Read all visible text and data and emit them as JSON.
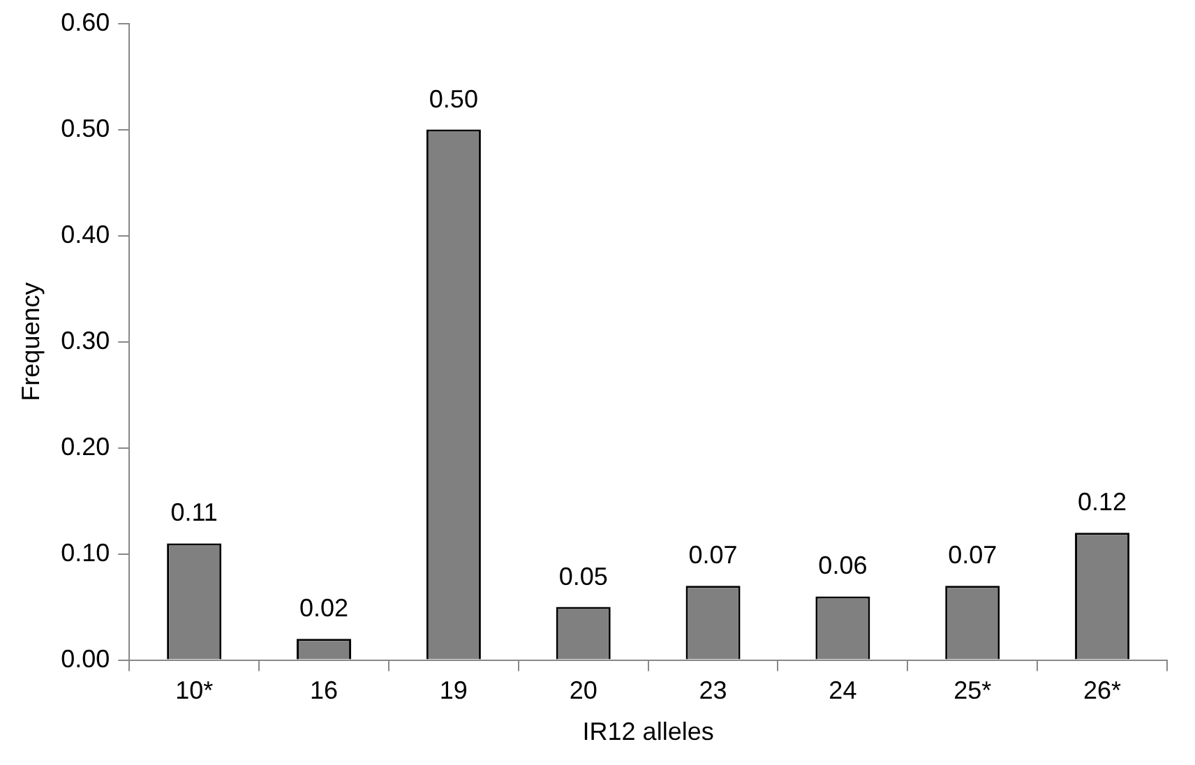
{
  "chart_data": {
    "type": "bar",
    "xlabel": "IR12 alleles",
    "ylabel": "Frequency",
    "categories": [
      "10*",
      "16",
      "19",
      "20",
      "23",
      "24",
      "25*",
      "26*"
    ],
    "values": [
      0.11,
      0.02,
      0.5,
      0.05,
      0.07,
      0.06,
      0.07,
      0.12
    ],
    "value_labels": [
      "0.11",
      "0.02",
      "0.50",
      "0.05",
      "0.07",
      "0.06",
      "0.07",
      "0.12"
    ],
    "color": "#808080",
    "ylim": [
      0,
      0.6
    ],
    "yticks": [
      {
        "value": 0,
        "label": "0.00"
      },
      {
        "value": 0.1,
        "label": "0.10"
      },
      {
        "value": 0.2,
        "label": "0.20"
      },
      {
        "value": 0.3,
        "label": "0.30"
      },
      {
        "value": 0.4,
        "label": "0.40"
      },
      {
        "value": 0.5,
        "label": "0.50"
      },
      {
        "value": 0.6,
        "label": "0.60"
      }
    ],
    "grid": false,
    "legend": false
  }
}
